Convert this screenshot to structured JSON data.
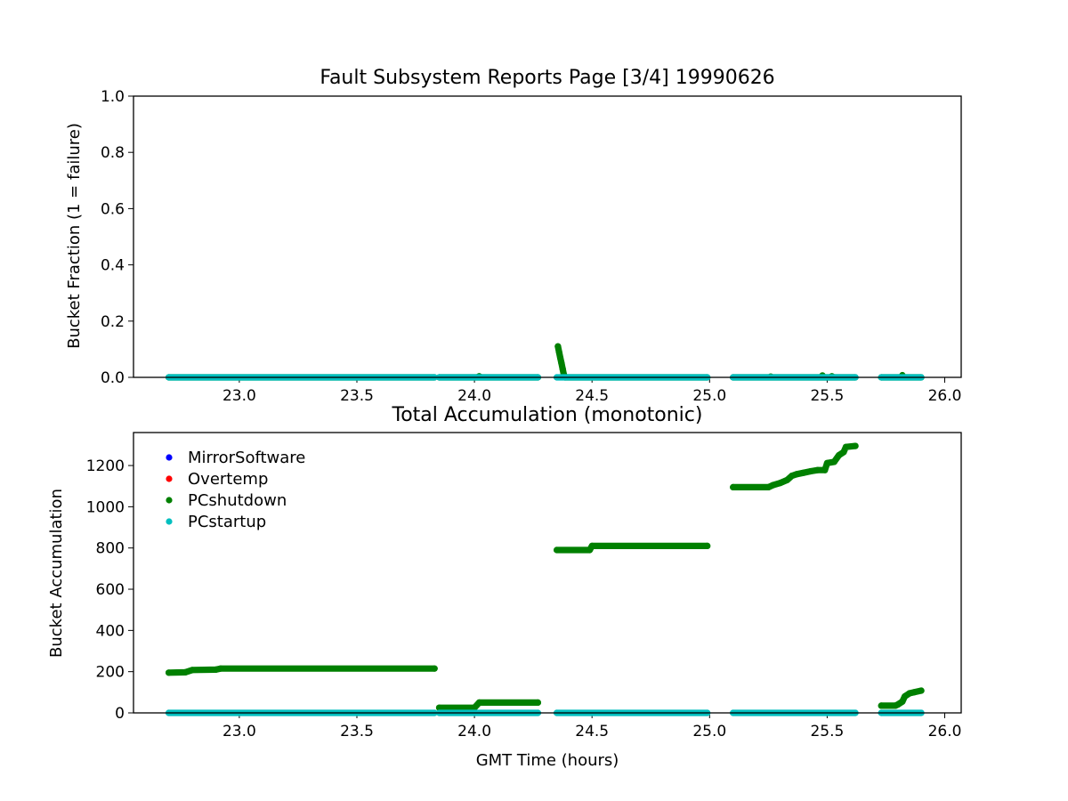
{
  "colors": {
    "MirrorSoftware": "#0000ff",
    "Overtemp": "#ff0000",
    "PCshutdown": "#008000",
    "PCstartup": "#00bfbf"
  },
  "chart_data": [
    {
      "type": "scatter",
      "title": "Fault Subsystem Reports Page [3/4] 19990626",
      "xlabel": "",
      "ylabel": "Bucket Fraction (1 = failure)",
      "xlim": [
        22.55,
        26.07
      ],
      "ylim": [
        0,
        1.0
      ],
      "xticks": [
        "23.0",
        "23.5",
        "24.0",
        "24.5",
        "25.0",
        "25.5",
        "26.0"
      ],
      "yticks": [
        "0.0",
        "0.2",
        "0.4",
        "0.6",
        "0.8",
        "1.0"
      ],
      "grid": false,
      "series": [
        {
          "name": "PCshutdown",
          "segments": [
            [
              [
                22.7,
                0
              ],
              [
                23.83,
                0
              ]
            ],
            [
              [
                23.85,
                0
              ],
              [
                24.27,
                0
              ]
            ],
            [
              [
                24.355,
                0.11
              ],
              [
                24.36,
                0.09
              ],
              [
                24.365,
                0.07
              ],
              [
                24.37,
                0.05
              ],
              [
                24.375,
                0.03
              ],
              [
                24.38,
                0.01
              ],
              [
                24.385,
                0
              ],
              [
                24.99,
                0
              ]
            ],
            [
              [
                25.1,
                0
              ],
              [
                25.62,
                0
              ]
            ],
            [
              [
                25.73,
                0
              ],
              [
                25.9,
                0
              ]
            ]
          ],
          "bumps": [
            [
              24.02,
              0.004
            ],
            [
              25.26,
              0.003
            ],
            [
              25.48,
              0.007
            ],
            [
              25.52,
              0.004
            ],
            [
              25.82,
              0.008
            ]
          ]
        },
        {
          "name": "PCstartup",
          "segments": [
            [
              [
                22.7,
                0
              ],
              [
                23.83,
                0
              ]
            ],
            [
              [
                23.85,
                0
              ],
              [
                24.27,
                0
              ]
            ],
            [
              [
                24.35,
                0
              ],
              [
                24.99,
                0
              ]
            ],
            [
              [
                25.1,
                0
              ],
              [
                25.62,
                0
              ]
            ],
            [
              [
                25.73,
                0
              ],
              [
                25.9,
                0
              ]
            ]
          ]
        }
      ]
    },
    {
      "type": "scatter",
      "title": "Total Accumulation (monotonic)",
      "xlabel": "GMT Time (hours)",
      "ylabel": "Bucket Accumulation",
      "xlim": [
        22.55,
        26.07
      ],
      "ylim": [
        0,
        1360
      ],
      "xticks": [
        "23.0",
        "23.5",
        "24.0",
        "24.5",
        "25.0",
        "25.5",
        "26.0"
      ],
      "yticks": [
        "0",
        "200",
        "400",
        "600",
        "800",
        "1000",
        "1200"
      ],
      "grid": false,
      "legend": {
        "position": "upper-left",
        "entries": [
          "MirrorSoftware",
          "Overtemp",
          "PCshutdown",
          "PCstartup"
        ]
      },
      "series": [
        {
          "name": "PCshutdown",
          "segments": [
            [
              [
                22.7,
                195
              ],
              [
                22.77,
                197
              ],
              [
                22.8,
                208
              ],
              [
                22.9,
                210
              ],
              [
                22.92,
                215
              ],
              [
                23.83,
                215
              ]
            ],
            [
              [
                23.85,
                25
              ],
              [
                24.0,
                25
              ],
              [
                24.02,
                50
              ],
              [
                24.27,
                50
              ]
            ],
            [
              [
                24.35,
                790
              ],
              [
                24.49,
                790
              ],
              [
                24.5,
                810
              ],
              [
                24.99,
                810
              ]
            ],
            [
              [
                25.1,
                1095
              ],
              [
                25.25,
                1095
              ],
              [
                25.27,
                1105
              ],
              [
                25.3,
                1115
              ],
              [
                25.33,
                1130
              ],
              [
                25.35,
                1150
              ],
              [
                25.37,
                1158
              ],
              [
                25.4,
                1165
              ],
              [
                25.43,
                1172
              ],
              [
                25.46,
                1178
              ],
              [
                25.49,
                1178
              ],
              [
                25.5,
                1212
              ],
              [
                25.53,
                1218
              ],
              [
                25.55,
                1250
              ],
              [
                25.57,
                1265
              ],
              [
                25.58,
                1290
              ],
              [
                25.62,
                1295
              ]
            ],
            [
              [
                25.73,
                35
              ],
              [
                25.79,
                35
              ],
              [
                25.8,
                40
              ],
              [
                25.82,
                55
              ],
              [
                25.83,
                80
              ],
              [
                25.85,
                95
              ],
              [
                25.87,
                100
              ],
              [
                25.9,
                108
              ]
            ]
          ]
        },
        {
          "name": "PCstartup",
          "segments": [
            [
              [
                22.7,
                0
              ],
              [
                23.83,
                0
              ]
            ],
            [
              [
                23.85,
                0
              ],
              [
                24.27,
                0
              ]
            ],
            [
              [
                24.35,
                0
              ],
              [
                24.99,
                0
              ]
            ],
            [
              [
                25.1,
                0
              ],
              [
                25.62,
                0
              ]
            ],
            [
              [
                25.73,
                0
              ],
              [
                25.9,
                0
              ]
            ]
          ]
        }
      ]
    }
  ]
}
